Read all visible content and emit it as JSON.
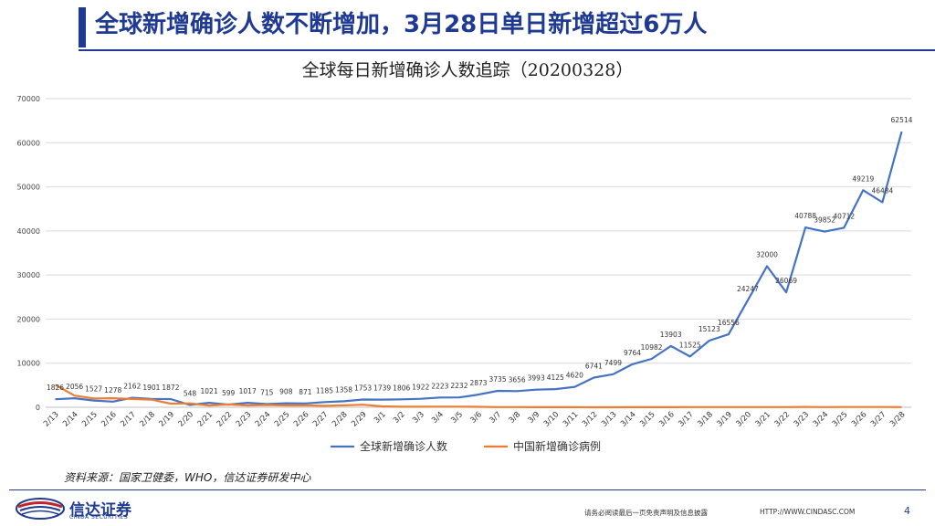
{
  "slide": {
    "title": "全球新增确诊人数不断增加，3月28日单日新增超过6万人",
    "source": "资料来源：国家卫健委，WHO，信达证券研发中心",
    "logo_name": "信达证券",
    "logo_sub": "CINDA SECURITIES",
    "disclaimer": "请务必阅读最后一页免责声明及信息披露",
    "url": "HTTP://WWW.CINDASC.COM",
    "page_number": "4"
  },
  "colors": {
    "brand": "#1f3a93",
    "global_line": "#4472c4",
    "china_line": "#ed7d31"
  },
  "chart_data": {
    "type": "line",
    "title": "全球每日新增确诊人数追踪（20200328）",
    "xlabel": "",
    "ylabel": "",
    "ylim": [
      0,
      70000
    ],
    "yticks": [
      "0",
      "10000",
      "20000",
      "30000",
      "40000",
      "50000",
      "60000",
      "70000"
    ],
    "grid": true,
    "legend_position": "bottom",
    "categories": [
      "2/13",
      "2/14",
      "2/15",
      "2/16",
      "2/17",
      "2/18",
      "2/19",
      "2/20",
      "2/21",
      "2/22",
      "2/23",
      "2/24",
      "2/25",
      "2/26",
      "2/27",
      "2/28",
      "2/29",
      "3/1",
      "3/2",
      "3/3",
      "3/4",
      "3/5",
      "3/6",
      "3/7",
      "3/8",
      "3/9",
      "3/10",
      "3/11",
      "3/12",
      "3/13",
      "3/14",
      "3/15",
      "3/16",
      "3/17",
      "3/18",
      "3/19",
      "3/20",
      "3/21",
      "3/22",
      "3/23",
      "3/24",
      "3/25",
      "3/26",
      "3/27",
      "3/28"
    ],
    "series": [
      {
        "name": "全球新增确诊人数",
        "values": [
          1826,
          2056,
          1527,
          1278,
          2162,
          1901,
          1872,
          548,
          1021,
          599,
          1017,
          715,
          908,
          871,
          1185,
          1358,
          1753,
          1739,
          1806,
          1922,
          2223,
          2232,
          2873,
          3735,
          3656,
          3993,
          4125,
          4620,
          6741,
          7499,
          9764,
          10982,
          13903,
          11525,
          15123,
          16556,
          24247,
          32000,
          26069,
          40788,
          39852,
          40712,
          49219,
          46484,
          62514
        ],
        "labels": [
          "1826",
          "2056",
          "1527",
          "1278",
          "2162",
          "1901",
          "1872",
          "548",
          "1021",
          "599",
          "1017",
          "715",
          "908",
          "871",
          "1185",
          "1358",
          "1753",
          "1739",
          "1806",
          "1922",
          "2223",
          "2232",
          "2873",
          "3735",
          "3656",
          "3993",
          "4125",
          "4620",
          "6741",
          "7499",
          "9764",
          "10982",
          "13903",
          "11525",
          "15123",
          "16556",
          "24247",
          "32000",
          "26069",
          "40788",
          "39852",
          "40712",
          "49219",
          "46484",
          "62514"
        ]
      },
      {
        "name": "中国新增确诊病例",
        "values": [
          5090,
          2641,
          2009,
          2048,
          1886,
          1749,
          820,
          889,
          397,
          648,
          409,
          508,
          406,
          433,
          327,
          427,
          573,
          202,
          125,
          119,
          139,
          143,
          99,
          44,
          40,
          19,
          24,
          15,
          8,
          5,
          18,
          27,
          16,
          39,
          34,
          39,
          41,
          46,
          39,
          78,
          47,
          67,
          55,
          54,
          45
        ]
      }
    ]
  }
}
